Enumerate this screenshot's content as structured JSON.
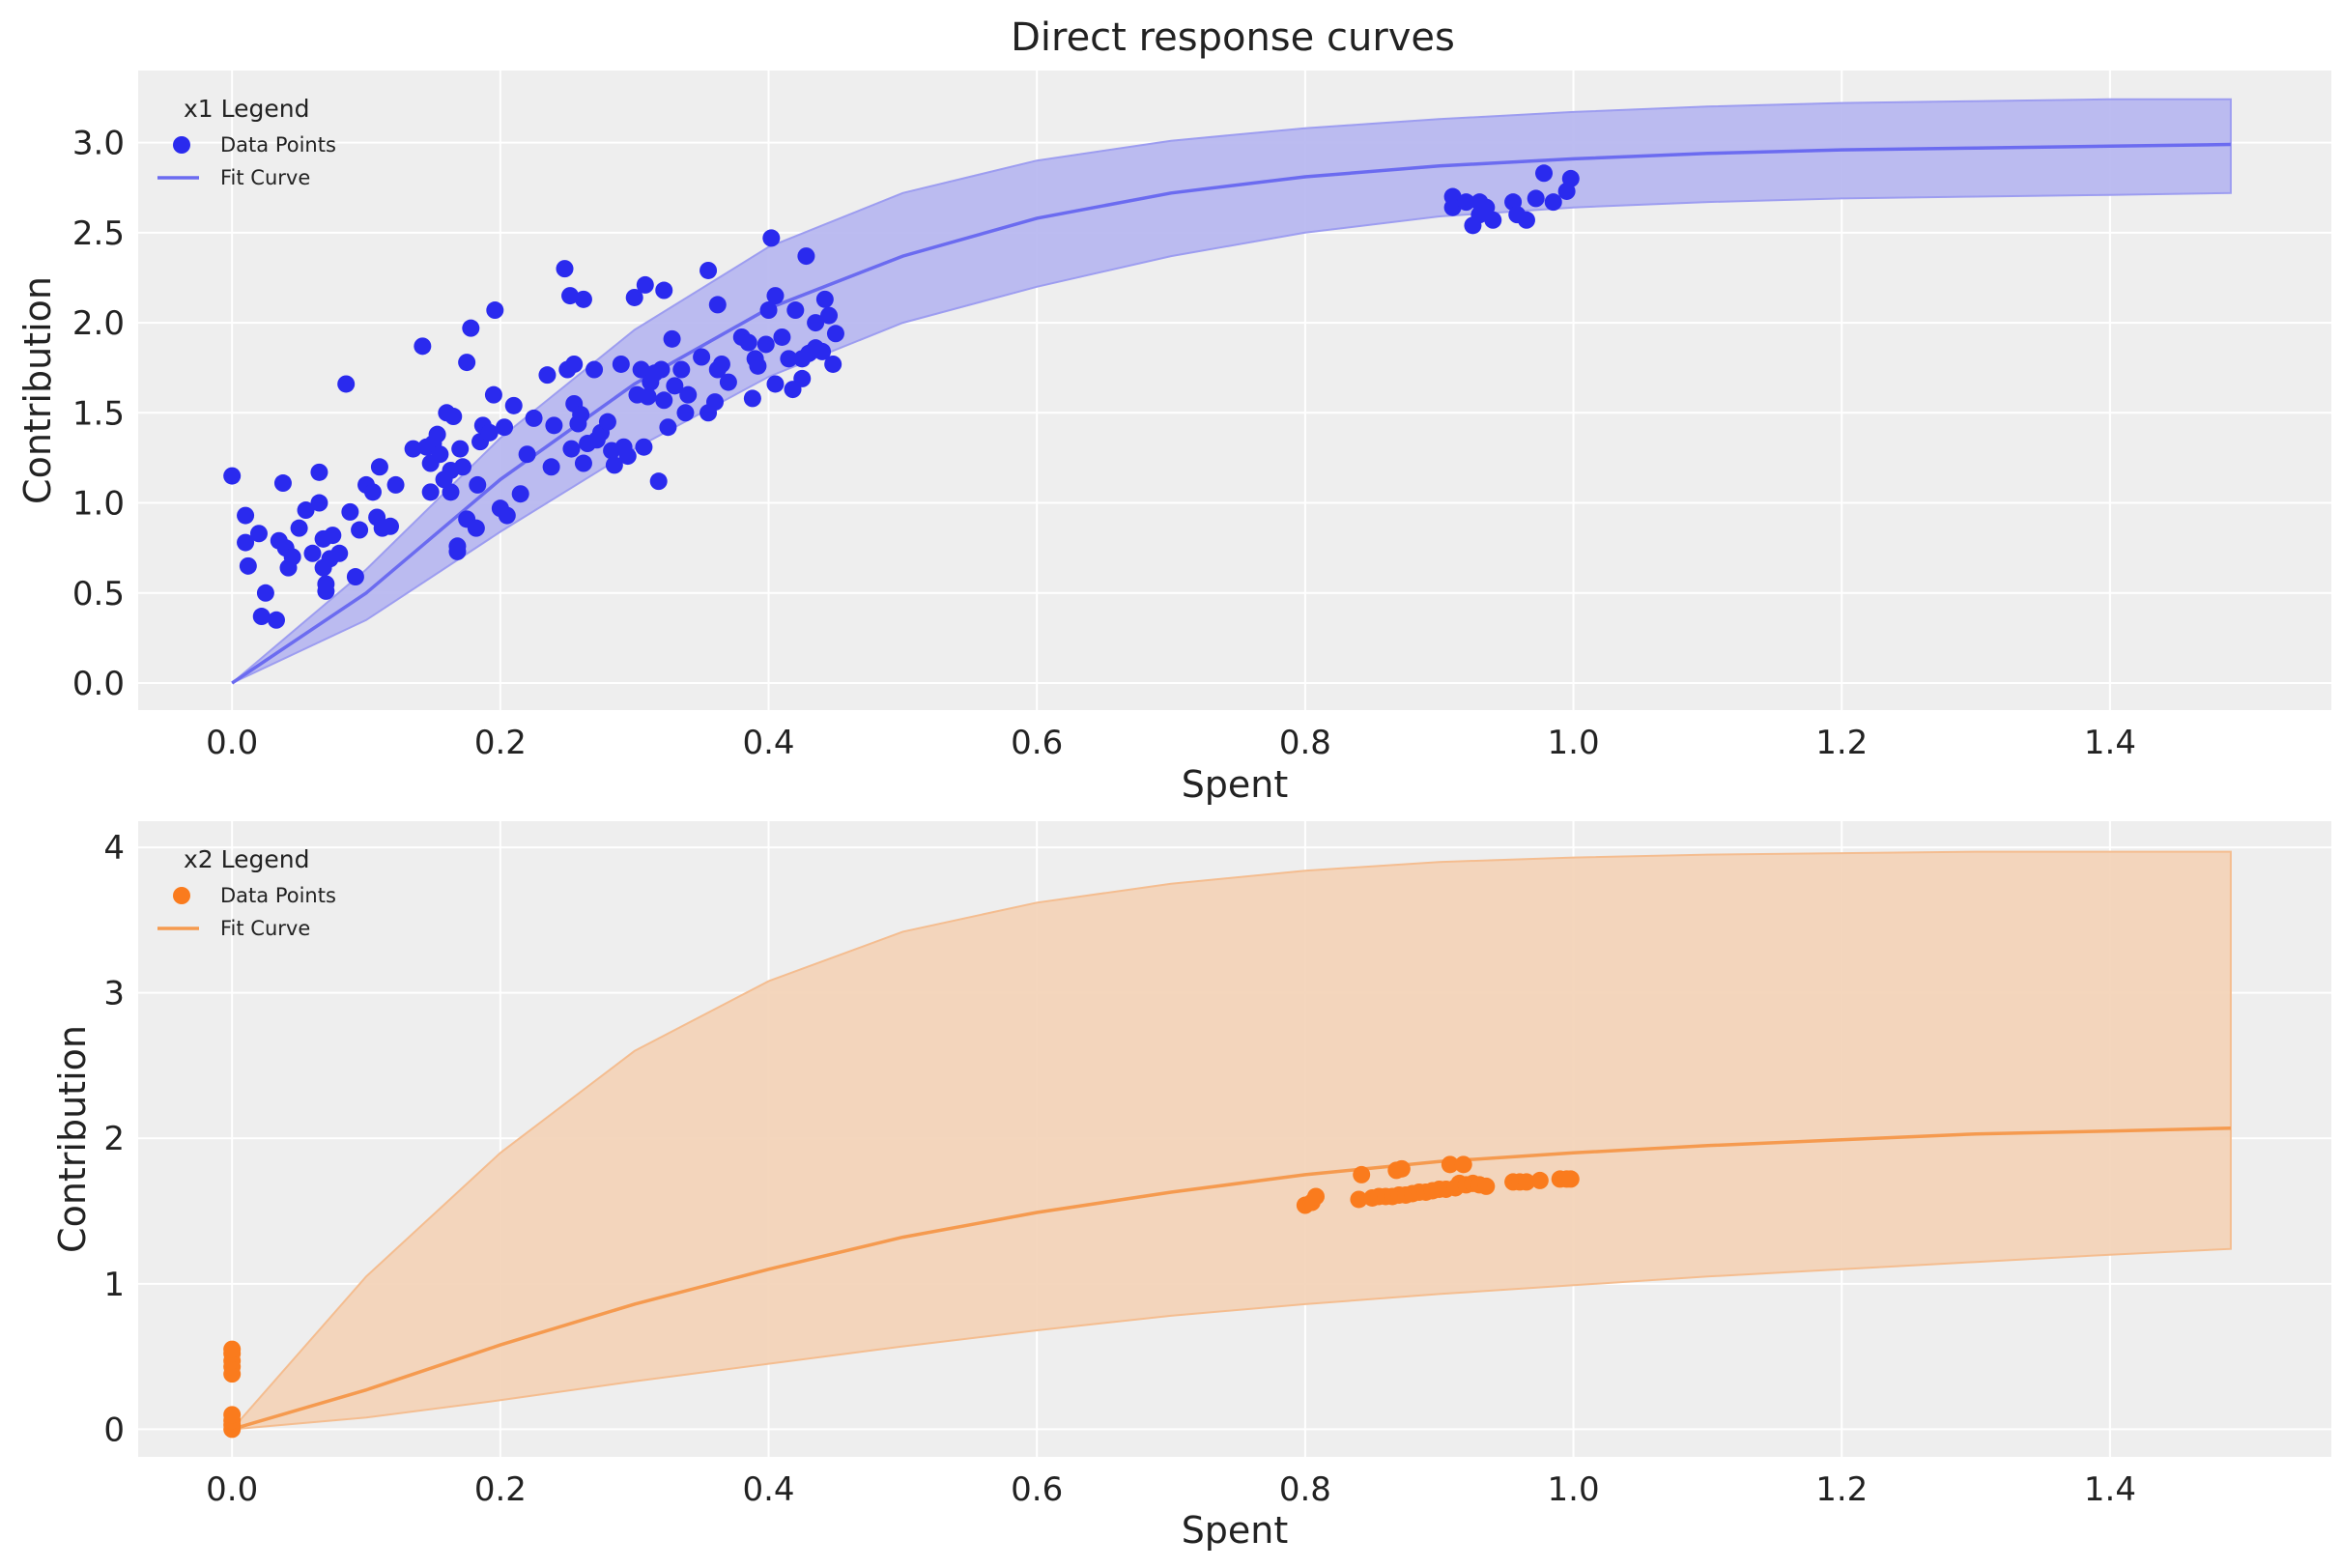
{
  "figure": {
    "title": "Direct response curves"
  },
  "chart_data": [
    {
      "type": "scatter",
      "title": "",
      "xlabel": "Spent",
      "ylabel": "Contribution",
      "xlim": [
        -0.07,
        1.565
      ],
      "ylim": [
        -0.15,
        3.4
      ],
      "xticks": [
        0.0,
        0.2,
        0.4,
        0.6,
        0.8,
        1.0,
        1.2,
        1.4
      ],
      "xtick_labels": [
        "0.0",
        "0.2",
        "0.4",
        "0.6",
        "0.8",
        "1.0",
        "1.2",
        "1.4"
      ],
      "yticks": [
        0.0,
        0.5,
        1.0,
        1.5,
        2.0,
        2.5,
        3.0
      ],
      "ytick_labels": [
        "0.0",
        "0.5",
        "1.0",
        "1.5",
        "2.0",
        "2.5",
        "3.0"
      ],
      "grid": true,
      "legend": {
        "title": "x1 Legend",
        "position": "top-left",
        "entries": [
          "Data Points",
          "Fit Curve"
        ]
      },
      "colors": {
        "points": "#2a2aee",
        "curve": "#6b6bf0",
        "band": "#b5b5ef",
        "band_edge": "#9d9df0"
      },
      "series": [
        {
          "name": "Data Points",
          "kind": "scatter",
          "points": [
            [
              0.0,
              1.15
            ],
            [
              0.01,
              0.93
            ],
            [
              0.01,
              0.78
            ],
            [
              0.012,
              0.65
            ],
            [
              0.02,
              0.83
            ],
            [
              0.022,
              0.37
            ],
            [
              0.025,
              0.5
            ],
            [
              0.033,
              0.35
            ],
            [
              0.035,
              0.79
            ],
            [
              0.038,
              1.11
            ],
            [
              0.04,
              0.75
            ],
            [
              0.042,
              0.64
            ],
            [
              0.045,
              0.7
            ],
            [
              0.05,
              0.86
            ],
            [
              0.055,
              0.96
            ],
            [
              0.06,
              0.72
            ],
            [
              0.065,
              1.0
            ],
            [
              0.065,
              1.17
            ],
            [
              0.068,
              0.8
            ],
            [
              0.068,
              0.64
            ],
            [
              0.07,
              0.55
            ],
            [
              0.07,
              0.51
            ],
            [
              0.073,
              0.69
            ],
            [
              0.075,
              0.82
            ],
            [
              0.08,
              0.72
            ],
            [
              0.085,
              1.66
            ],
            [
              0.088,
              0.95
            ],
            [
              0.092,
              0.59
            ],
            [
              0.095,
              0.85
            ],
            [
              0.1,
              1.1
            ],
            [
              0.105,
              1.06
            ],
            [
              0.108,
              0.92
            ],
            [
              0.11,
              1.2
            ],
            [
              0.112,
              0.86
            ],
            [
              0.118,
              0.87
            ],
            [
              0.122,
              1.1
            ],
            [
              0.135,
              1.3
            ],
            [
              0.142,
              1.87
            ],
            [
              0.145,
              1.31
            ],
            [
              0.148,
              1.06
            ],
            [
              0.148,
              1.22
            ],
            [
              0.15,
              1.33
            ],
            [
              0.153,
              1.38
            ],
            [
              0.155,
              1.27
            ],
            [
              0.158,
              1.13
            ],
            [
              0.16,
              1.5
            ],
            [
              0.163,
              1.06
            ],
            [
              0.163,
              1.18
            ],
            [
              0.165,
              1.48
            ],
            [
              0.168,
              0.73
            ],
            [
              0.168,
              0.76
            ],
            [
              0.17,
              1.3
            ],
            [
              0.172,
              1.2
            ],
            [
              0.175,
              0.91
            ],
            [
              0.175,
              1.78
            ],
            [
              0.178,
              1.97
            ],
            [
              0.182,
              0.86
            ],
            [
              0.183,
              1.1
            ],
            [
              0.185,
              1.34
            ],
            [
              0.187,
              1.43
            ],
            [
              0.192,
              1.39
            ],
            [
              0.195,
              1.6
            ],
            [
              0.196,
              2.07
            ],
            [
              0.2,
              0.97
            ],
            [
              0.203,
              1.42
            ],
            [
              0.205,
              0.93
            ],
            [
              0.21,
              1.54
            ],
            [
              0.215,
              1.05
            ],
            [
              0.22,
              1.27
            ],
            [
              0.225,
              1.47
            ],
            [
              0.235,
              1.71
            ],
            [
              0.238,
              1.2
            ],
            [
              0.24,
              1.43
            ],
            [
              0.248,
              2.3
            ],
            [
              0.25,
              1.74
            ],
            [
              0.252,
              2.15
            ],
            [
              0.253,
              1.3
            ],
            [
              0.255,
              1.77
            ],
            [
              0.255,
              1.55
            ],
            [
              0.258,
              1.44
            ],
            [
              0.26,
              1.49
            ],
            [
              0.262,
              2.13
            ],
            [
              0.262,
              1.22
            ],
            [
              0.265,
              1.33
            ],
            [
              0.27,
              1.74
            ],
            [
              0.272,
              1.35
            ],
            [
              0.275,
              1.39
            ],
            [
              0.28,
              1.45
            ],
            [
              0.283,
              1.29
            ],
            [
              0.285,
              1.21
            ],
            [
              0.29,
              1.77
            ],
            [
              0.292,
              1.31
            ],
            [
              0.295,
              1.26
            ],
            [
              0.3,
              2.14
            ],
            [
              0.302,
              1.6
            ],
            [
              0.305,
              1.74
            ],
            [
              0.307,
              1.31
            ],
            [
              0.308,
              2.21
            ],
            [
              0.31,
              1.59
            ],
            [
              0.312,
              1.67
            ],
            [
              0.315,
              1.72
            ],
            [
              0.318,
              1.12
            ],
            [
              0.32,
              1.74
            ],
            [
              0.322,
              1.57
            ],
            [
              0.322,
              2.18
            ],
            [
              0.325,
              1.42
            ],
            [
              0.328,
              1.91
            ],
            [
              0.33,
              1.65
            ],
            [
              0.335,
              1.74
            ],
            [
              0.338,
              1.5
            ],
            [
              0.34,
              1.6
            ],
            [
              0.35,
              1.81
            ],
            [
              0.355,
              2.29
            ],
            [
              0.355,
              1.5
            ],
            [
              0.36,
              1.56
            ],
            [
              0.362,
              2.1
            ],
            [
              0.362,
              1.74
            ],
            [
              0.365,
              1.77
            ],
            [
              0.37,
              1.67
            ],
            [
              0.38,
              1.92
            ],
            [
              0.385,
              1.89
            ],
            [
              0.388,
              1.58
            ],
            [
              0.39,
              1.8
            ],
            [
              0.392,
              1.76
            ],
            [
              0.398,
              1.88
            ],
            [
              0.4,
              2.07
            ],
            [
              0.402,
              2.47
            ],
            [
              0.405,
              1.66
            ],
            [
              0.405,
              2.15
            ],
            [
              0.41,
              1.92
            ],
            [
              0.415,
              1.8
            ],
            [
              0.418,
              1.63
            ],
            [
              0.42,
              2.07
            ],
            [
              0.425,
              1.8
            ],
            [
              0.425,
              1.69
            ],
            [
              0.428,
              2.37
            ],
            [
              0.43,
              1.83
            ],
            [
              0.435,
              2.0
            ],
            [
              0.435,
              1.86
            ],
            [
              0.44,
              1.84
            ],
            [
              0.442,
              2.13
            ],
            [
              0.445,
              2.04
            ],
            [
              0.448,
              1.77
            ],
            [
              0.45,
              1.94
            ],
            [
              0.91,
              2.7
            ],
            [
              0.91,
              2.64
            ],
            [
              0.92,
              2.67
            ],
            [
              0.925,
              2.54
            ],
            [
              0.93,
              2.6
            ],
            [
              0.93,
              2.67
            ],
            [
              0.935,
              2.64
            ],
            [
              0.94,
              2.57
            ],
            [
              0.955,
              2.67
            ],
            [
              0.958,
              2.6
            ],
            [
              0.965,
              2.57
            ],
            [
              0.972,
              2.69
            ],
            [
              0.978,
              2.83
            ],
            [
              0.985,
              2.67
            ],
            [
              0.995,
              2.73
            ],
            [
              0.998,
              2.8
            ]
          ]
        },
        {
          "name": "Fit Curve",
          "kind": "line",
          "x": [
            0.0,
            0.1,
            0.2,
            0.3,
            0.4,
            0.5,
            0.6,
            0.7,
            0.8,
            0.9,
            1.0,
            1.1,
            1.2,
            1.3,
            1.4,
            1.49
          ],
          "y": [
            0.0,
            0.5,
            1.13,
            1.66,
            2.08,
            2.37,
            2.58,
            2.72,
            2.81,
            2.87,
            2.91,
            2.94,
            2.96,
            2.97,
            2.98,
            2.99
          ]
        },
        {
          "name": "",
          "kind": "band",
          "x": [
            0.0,
            0.1,
            0.2,
            0.3,
            0.4,
            0.5,
            0.6,
            0.7,
            0.8,
            0.9,
            1.0,
            1.1,
            1.2,
            1.3,
            1.4,
            1.49
          ],
          "lower": [
            0.0,
            0.35,
            0.84,
            1.3,
            1.7,
            2.0,
            2.2,
            2.37,
            2.5,
            2.59,
            2.64,
            2.67,
            2.69,
            2.7,
            2.71,
            2.72
          ],
          "upper": [
            0.0,
            0.63,
            1.36,
            1.96,
            2.42,
            2.72,
            2.9,
            3.01,
            3.08,
            3.13,
            3.17,
            3.2,
            3.22,
            3.23,
            3.24,
            3.24
          ]
        }
      ]
    },
    {
      "type": "scatter",
      "title": "",
      "xlabel": "Spent",
      "ylabel": "Contribution",
      "xlim": [
        -0.07,
        1.565
      ],
      "ylim": [
        -0.19,
        4.18
      ],
      "xticks": [
        0.0,
        0.2,
        0.4,
        0.6,
        0.8,
        1.0,
        1.2,
        1.4
      ],
      "xtick_labels": [
        "0.0",
        "0.2",
        "0.4",
        "0.6",
        "0.8",
        "1.0",
        "1.2",
        "1.4"
      ],
      "yticks": [
        0,
        1,
        2,
        3,
        4
      ],
      "ytick_labels": [
        "0",
        "1",
        "2",
        "3",
        "4"
      ],
      "grid": true,
      "legend": {
        "title": "x2 Legend",
        "position": "top-left",
        "entries": [
          "Data Points",
          "Fit Curve"
        ]
      },
      "colors": {
        "points": "#fa7b1d",
        "curve": "#f59a4f",
        "band": "#f3d1b6",
        "band_edge": "#f4bd90"
      },
      "series": [
        {
          "name": "Data Points",
          "kind": "scatter",
          "points": [
            [
              0.0,
              0.0
            ],
            [
              0.0,
              0.03
            ],
            [
              0.0,
              0.06
            ],
            [
              0.0,
              0.1
            ],
            [
              0.0,
              0.38
            ],
            [
              0.0,
              0.43
            ],
            [
              0.0,
              0.47
            ],
            [
              0.0,
              0.52
            ],
            [
              0.0,
              0.55
            ],
            [
              0.8,
              1.54
            ],
            [
              0.805,
              1.56
            ],
            [
              0.808,
              1.6
            ],
            [
              0.84,
              1.58
            ],
            [
              0.842,
              1.75
            ],
            [
              0.85,
              1.59
            ],
            [
              0.855,
              1.6
            ],
            [
              0.86,
              1.6
            ],
            [
              0.865,
              1.6
            ],
            [
              0.868,
              1.78
            ],
            [
              0.87,
              1.61
            ],
            [
              0.872,
              1.79
            ],
            [
              0.875,
              1.61
            ],
            [
              0.88,
              1.62
            ],
            [
              0.885,
              1.63
            ],
            [
              0.89,
              1.63
            ],
            [
              0.895,
              1.64
            ],
            [
              0.9,
              1.65
            ],
            [
              0.905,
              1.65
            ],
            [
              0.908,
              1.82
            ],
            [
              0.912,
              1.66
            ],
            [
              0.915,
              1.69
            ],
            [
              0.918,
              1.82
            ],
            [
              0.92,
              1.68
            ],
            [
              0.925,
              1.69
            ],
            [
              0.93,
              1.68
            ],
            [
              0.935,
              1.67
            ],
            [
              0.955,
              1.7
            ],
            [
              0.96,
              1.7
            ],
            [
              0.965,
              1.7
            ],
            [
              0.975,
              1.71
            ],
            [
              0.99,
              1.72
            ],
            [
              0.995,
              1.72
            ],
            [
              0.998,
              1.72
            ]
          ]
        },
        {
          "name": "Fit Curve",
          "kind": "line",
          "x": [
            0.0,
            0.1,
            0.2,
            0.3,
            0.4,
            0.5,
            0.6,
            0.7,
            0.8,
            0.9,
            1.0,
            1.1,
            1.2,
            1.3,
            1.4,
            1.49
          ],
          "y": [
            0.0,
            0.27,
            0.58,
            0.86,
            1.1,
            1.32,
            1.49,
            1.63,
            1.75,
            1.84,
            1.9,
            1.95,
            1.99,
            2.03,
            2.05,
            2.07
          ]
        },
        {
          "name": "",
          "kind": "band",
          "x": [
            0.0,
            0.1,
            0.2,
            0.3,
            0.4,
            0.5,
            0.6,
            0.7,
            0.8,
            0.9,
            1.0,
            1.1,
            1.2,
            1.3,
            1.4,
            1.49
          ],
          "lower": [
            0.0,
            0.08,
            0.2,
            0.33,
            0.45,
            0.57,
            0.68,
            0.78,
            0.86,
            0.93,
            0.99,
            1.05,
            1.1,
            1.15,
            1.2,
            1.24
          ],
          "upper": [
            0.0,
            1.05,
            1.9,
            2.6,
            3.08,
            3.42,
            3.62,
            3.75,
            3.84,
            3.9,
            3.93,
            3.95,
            3.96,
            3.97,
            3.97,
            3.97
          ]
        }
      ]
    }
  ]
}
